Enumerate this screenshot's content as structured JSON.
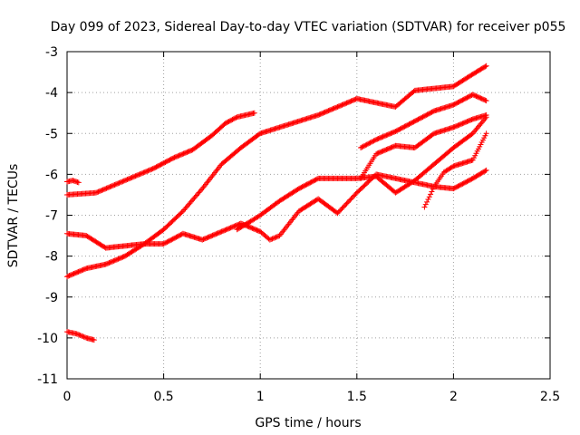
{
  "chart_data": {
    "type": "scatter",
    "title": "Day 099 of 2023, Sidereal Day-to-day VTEC variation (SDTVAR) for receiver p055",
    "xlabel": "GPS time / hours",
    "ylabel": "SDTVAR / TECUs",
    "xlim": [
      0,
      2.5
    ],
    "ylim": [
      -11,
      -3
    ],
    "xticks": [
      "0",
      "0.5",
      "1",
      "1.5",
      "2",
      "2.5"
    ],
    "yticks": [
      "-3",
      "-4",
      "-5",
      "-6",
      "-7",
      "-8",
      "-9",
      "-10",
      "-11"
    ],
    "grid": true,
    "marker_color": "#ff0000",
    "series": [
      {
        "x": [
          0.0,
          0.15,
          0.3,
          0.45,
          0.55,
          0.65,
          0.75,
          0.82,
          0.88,
          0.97
        ],
        "y": [
          -6.5,
          -6.45,
          -6.15,
          -5.85,
          -5.6,
          -5.4,
          -5.05,
          -4.75,
          -4.6,
          -4.5
        ]
      },
      {
        "x": [
          0.0,
          0.1,
          0.2,
          0.3,
          0.4,
          0.5,
          0.6,
          0.7,
          0.8,
          0.9,
          1.0,
          1.1,
          1.2,
          1.3,
          1.4,
          1.5,
          1.6,
          1.7,
          1.8,
          1.9,
          2.0,
          2.1,
          2.17
        ],
        "y": [
          -8.5,
          -8.3,
          -8.2,
          -8.0,
          -7.7,
          -7.35,
          -6.9,
          -6.35,
          -5.75,
          -5.35,
          -5.0,
          -4.85,
          -4.7,
          -4.55,
          -4.35,
          -4.15,
          -4.25,
          -4.35,
          -3.95,
          -3.9,
          -3.85,
          -3.55,
          -3.35
        ]
      },
      {
        "x": [
          0.0,
          0.1,
          0.2,
          0.3,
          0.4,
          0.5,
          0.6,
          0.7,
          0.8,
          0.9,
          1.0,
          1.05,
          1.1,
          1.2,
          1.3,
          1.4,
          1.5,
          1.6,
          1.7,
          1.8,
          1.9,
          2.0,
          2.1,
          2.17
        ],
        "y": [
          -7.45,
          -7.5,
          -7.8,
          -7.75,
          -7.7,
          -7.7,
          -7.45,
          -7.6,
          -7.4,
          -7.2,
          -7.4,
          -7.6,
          -7.5,
          -6.9,
          -6.6,
          -6.95,
          -6.45,
          -6.0,
          -6.1,
          -6.2,
          -6.3,
          -6.35,
          -6.1,
          -5.9
        ]
      },
      {
        "x": [
          0.88,
          0.95,
          1.0,
          1.1,
          1.2,
          1.3,
          1.4,
          1.5,
          1.6,
          1.7,
          1.8,
          1.9,
          2.0,
          2.1,
          2.17
        ],
        "y": [
          -7.35,
          -7.15,
          -7.0,
          -6.65,
          -6.35,
          -6.1,
          -6.1,
          -6.1,
          -6.05,
          -6.45,
          -6.15,
          -5.75,
          -5.35,
          -5.0,
          -4.6
        ]
      },
      {
        "x": [
          1.52,
          1.6,
          1.7,
          1.8,
          1.9,
          2.0,
          2.1,
          2.17
        ],
        "y": [
          -5.35,
          -5.15,
          -4.95,
          -4.7,
          -4.45,
          -4.3,
          -4.05,
          -4.2
        ]
      },
      {
        "x": [
          1.52,
          1.6,
          1.7,
          1.8,
          1.9,
          2.0,
          2.1,
          2.17
        ],
        "y": [
          -6.1,
          -5.5,
          -5.3,
          -5.35,
          -5.0,
          -4.85,
          -4.65,
          -4.55
        ]
      },
      {
        "x": [
          1.85,
          1.9,
          1.95,
          2.0,
          2.1,
          2.17
        ],
        "y": [
          -6.8,
          -6.3,
          -5.95,
          -5.8,
          -5.65,
          -5.0
        ]
      },
      {
        "x": [
          0.0,
          0.03,
          0.06
        ],
        "y": [
          -6.18,
          -6.15,
          -6.2
        ]
      },
      {
        "x": [
          0.0,
          0.05,
          0.1,
          0.14
        ],
        "y": [
          -9.85,
          -9.9,
          -10.0,
          -10.05
        ]
      }
    ]
  }
}
